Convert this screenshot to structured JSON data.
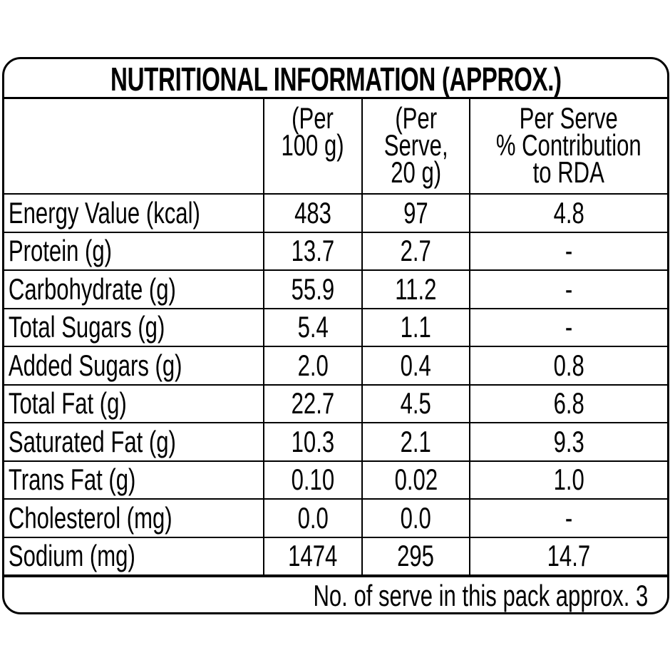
{
  "title": "NUTRITIONAL INFORMATION (APPROX.)",
  "columns": {
    "per_100g": [
      "(Per",
      "100 g)"
    ],
    "per_serve": [
      "(Per",
      "Serve,",
      "20 g)"
    ],
    "rda": [
      "Per Serve",
      "% Contribution",
      "to RDA"
    ]
  },
  "rows": [
    {
      "label": "Energy Value (kcal)",
      "per_100g": "483",
      "per_serve": "97",
      "rda": "4.8"
    },
    {
      "label": "Protein (g)",
      "per_100g": "13.7",
      "per_serve": "2.7",
      "rda": "-"
    },
    {
      "label": "Carbohydrate (g)",
      "per_100g": "55.9",
      "per_serve": "11.2",
      "rda": "-"
    },
    {
      "label": "Total Sugars (g)",
      "per_100g": "5.4",
      "per_serve": "1.1",
      "rda": "-"
    },
    {
      "label": "Added Sugars (g)",
      "per_100g": "2.0",
      "per_serve": "0.4",
      "rda": "0.8"
    },
    {
      "label": "Total Fat (g)",
      "per_100g": "22.7",
      "per_serve": "4.5",
      "rda": "6.8"
    },
    {
      "label": "Saturated Fat (g)",
      "per_100g": "10.3",
      "per_serve": "2.1",
      "rda": "9.3"
    },
    {
      "label": "Trans Fat (g)",
      "per_100g": "0.10",
      "per_serve": "0.02",
      "rda": "1.0"
    },
    {
      "label": "Cholesterol (mg)",
      "per_100g": "0.0",
      "per_serve": "0.0",
      "rda": "-"
    },
    {
      "label": "Sodium (mg)",
      "per_100g": "1474",
      "per_serve": "295",
      "rda": "14.7"
    }
  ],
  "footer": "No. of serve in this pack approx. 3"
}
